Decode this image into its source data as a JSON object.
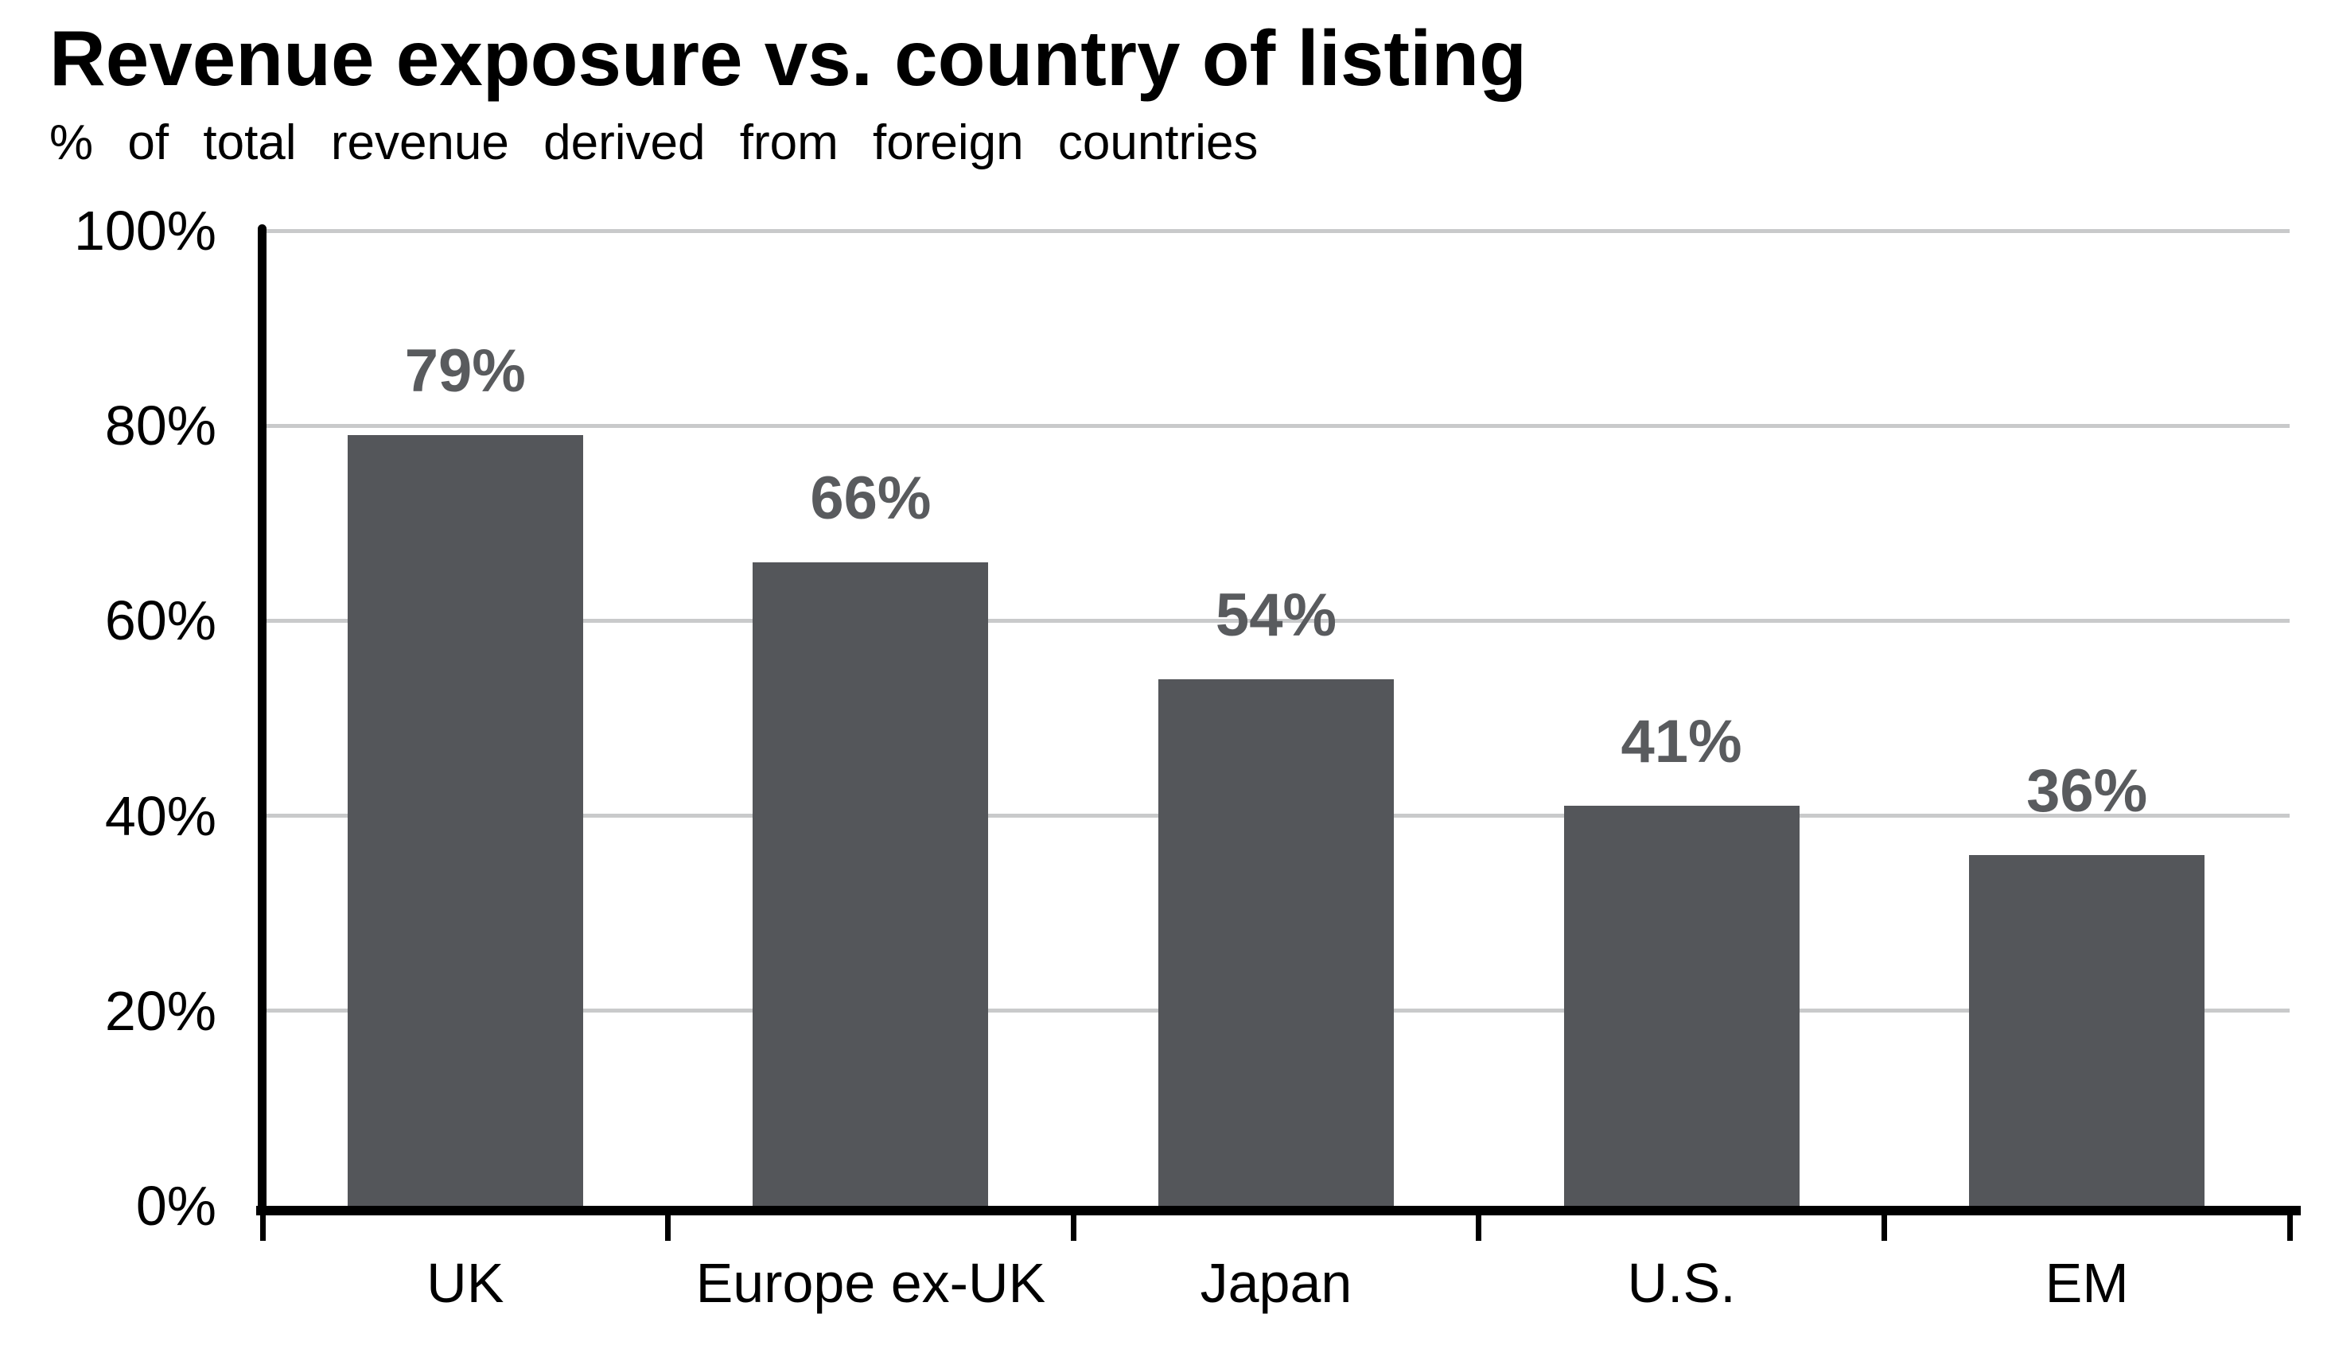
{
  "chart_data": {
    "type": "bar",
    "title": "Revenue exposure vs. country of listing",
    "subtitle": "% of total revenue derived from foreign countries",
    "categories": [
      "UK",
      "Europe ex-UK",
      "Japan",
      "U.S.",
      "EM"
    ],
    "values": [
      79,
      66,
      54,
      41,
      36
    ],
    "value_labels": [
      "79%",
      "66%",
      "54%",
      "41%",
      "36%"
    ],
    "xlabel": "",
    "ylabel": "",
    "ylim": [
      0,
      100
    ],
    "ytick_interval": 20,
    "yticks": [
      "0%",
      "20%",
      "40%",
      "60%",
      "80%",
      "100%"
    ],
    "grid": "horizontal-major",
    "legend": "none",
    "colors": {
      "bar": "#54565a",
      "data_label": "#595b5e",
      "gridline": "#c9cacb",
      "axis": "#000000",
      "text": "#000000",
      "background": "#ffffff"
    }
  }
}
